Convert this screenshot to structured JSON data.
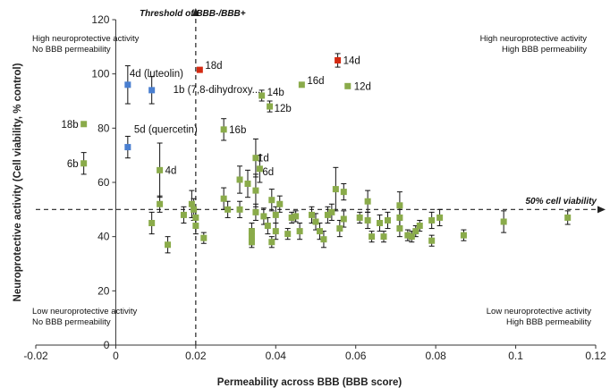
{
  "chart_data": {
    "type": "scatter",
    "title": "",
    "xlabel": "Permeability across BBB (BBB score)",
    "ylabel": "Neuroprotective activity (Cell viability, % control)",
    "xlim": [
      -0.02,
      0.12
    ],
    "ylim": [
      0,
      120
    ],
    "xticks": [
      -0.02,
      0,
      0.02,
      0.04,
      0.06,
      0.08,
      0.1,
      0.12
    ],
    "xtick_labels": [
      "-0.02",
      "0",
      "0.02",
      "0.04",
      "0.06",
      "0.08",
      "0.1",
      "0.12"
    ],
    "yticks": [
      0,
      20,
      40,
      60,
      80,
      100,
      120
    ],
    "ytick_labels": [
      "0",
      "20",
      "40",
      "60",
      "80",
      "100",
      "120"
    ],
    "grid": false,
    "colors": {
      "green": "#8aab4a",
      "blue": "#4a7fd0",
      "red": "#d42a12",
      "axis": "#333333"
    },
    "reference_lines": {
      "vertical": {
        "x": 0.02,
        "label": "Threshold of BBB-/BBB+"
      },
      "horizontal": {
        "y": 50,
        "label": "50% cell viability"
      }
    },
    "quadrant_labels": {
      "top_left": [
        "High neuroprotective activity",
        "No BBB permeability"
      ],
      "top_right": [
        "High neuroprotective activity",
        "High BBB permeability"
      ],
      "bottom_left": [
        "Low neuroprotective activity",
        "No BBB permeability"
      ],
      "bottom_right": [
        "Low neuroprotective activity",
        "High BBB permeability"
      ]
    },
    "points": [
      {
        "x": 0.021,
        "y": 101.5,
        "err": 0,
        "color": "red",
        "label": "18d"
      },
      {
        "x": 0.0555,
        "y": 105,
        "err": 2.5,
        "color": "red",
        "label": "14d"
      },
      {
        "x": 0.003,
        "y": 96,
        "err": 7,
        "color": "blue",
        "label": "4d (luteolin)"
      },
      {
        "x": 0.009,
        "y": 94,
        "err": 5,
        "color": "blue",
        "label": "1b (7,8-dihydroxy..."
      },
      {
        "x": 0.003,
        "y": 73,
        "err": 4,
        "color": "blue",
        "label": "5d (quercetin)"
      },
      {
        "x": -0.008,
        "y": 81.5,
        "err": 0,
        "color": "green",
        "label": "18b"
      },
      {
        "x": -0.008,
        "y": 67,
        "err": 4,
        "color": "green",
        "label": "6b"
      },
      {
        "x": 0.0465,
        "y": 96,
        "err": 0,
        "color": "green",
        "label": "16d"
      },
      {
        "x": 0.058,
        "y": 95.5,
        "err": 0,
        "color": "green",
        "label": "12d"
      },
      {
        "x": 0.0365,
        "y": 92,
        "err": 2,
        "color": "green",
        "label": "14b"
      },
      {
        "x": 0.0385,
        "y": 88,
        "err": 2,
        "color": "green",
        "label": "12b"
      },
      {
        "x": 0.027,
        "y": 79.5,
        "err": 4,
        "color": "green",
        "label": "16b"
      },
      {
        "x": 0.011,
        "y": 64.5,
        "err": 10,
        "color": "green",
        "label": "4d"
      },
      {
        "x": 0.035,
        "y": 69,
        "err": 7,
        "color": "green",
        "label": "1d"
      },
      {
        "x": 0.036,
        "y": 65,
        "err": 5,
        "color": "green",
        "label": "6d"
      },
      {
        "x": 0.009,
        "y": 45,
        "err": 4,
        "color": "green",
        "label": ""
      },
      {
        "x": 0.011,
        "y": 52,
        "err": 3,
        "color": "green",
        "label": ""
      },
      {
        "x": 0.013,
        "y": 37,
        "err": 3,
        "color": "green",
        "label": ""
      },
      {
        "x": 0.017,
        "y": 48,
        "err": 3,
        "color": "green",
        "label": ""
      },
      {
        "x": 0.019,
        "y": 52,
        "err": 5,
        "color": "green",
        "label": ""
      },
      {
        "x": 0.0195,
        "y": 50,
        "err": 4,
        "color": "green",
        "label": ""
      },
      {
        "x": 0.02,
        "y": 47,
        "err": 3,
        "color": "green",
        "label": ""
      },
      {
        "x": 0.02,
        "y": 44,
        "err": 3,
        "color": "green",
        "label": ""
      },
      {
        "x": 0.022,
        "y": 39.5,
        "err": 2,
        "color": "green",
        "label": ""
      },
      {
        "x": 0.027,
        "y": 54,
        "err": 4,
        "color": "green",
        "label": ""
      },
      {
        "x": 0.028,
        "y": 50,
        "err": 3,
        "color": "green",
        "label": ""
      },
      {
        "x": 0.031,
        "y": 61,
        "err": 5,
        "color": "green",
        "label": ""
      },
      {
        "x": 0.031,
        "y": 50,
        "err": 3,
        "color": "green",
        "label": ""
      },
      {
        "x": 0.033,
        "y": 59.5,
        "err": 5,
        "color": "green",
        "label": ""
      },
      {
        "x": 0.034,
        "y": 42,
        "err": 3,
        "color": "green",
        "label": ""
      },
      {
        "x": 0.034,
        "y": 40,
        "err": 3,
        "color": "green",
        "label": ""
      },
      {
        "x": 0.034,
        "y": 38,
        "err": 2,
        "color": "green",
        "label": ""
      },
      {
        "x": 0.035,
        "y": 57,
        "err": 6,
        "color": "green",
        "label": ""
      },
      {
        "x": 0.035,
        "y": 49,
        "err": 3,
        "color": "green",
        "label": ""
      },
      {
        "x": 0.037,
        "y": 47.5,
        "err": 3,
        "color": "green",
        "label": ""
      },
      {
        "x": 0.038,
        "y": 44,
        "err": 3,
        "color": "green",
        "label": ""
      },
      {
        "x": 0.039,
        "y": 53.5,
        "err": 4,
        "color": "green",
        "label": ""
      },
      {
        "x": 0.039,
        "y": 38,
        "err": 2,
        "color": "green",
        "label": ""
      },
      {
        "x": 0.04,
        "y": 48,
        "err": 3,
        "color": "green",
        "label": ""
      },
      {
        "x": 0.041,
        "y": 52,
        "err": 3,
        "color": "green",
        "label": ""
      },
      {
        "x": 0.04,
        "y": 42,
        "err": 3,
        "color": "green",
        "label": ""
      },
      {
        "x": 0.043,
        "y": 41,
        "err": 2,
        "color": "green",
        "label": ""
      },
      {
        "x": 0.044,
        "y": 47,
        "err": 2,
        "color": "green",
        "label": ""
      },
      {
        "x": 0.045,
        "y": 47.5,
        "err": 2,
        "color": "green",
        "label": ""
      },
      {
        "x": 0.046,
        "y": 42,
        "err": 3,
        "color": "green",
        "label": ""
      },
      {
        "x": 0.049,
        "y": 48,
        "err": 3,
        "color": "green",
        "label": ""
      },
      {
        "x": 0.05,
        "y": 45.5,
        "err": 3,
        "color": "green",
        "label": ""
      },
      {
        "x": 0.051,
        "y": 42,
        "err": 3,
        "color": "green",
        "label": ""
      },
      {
        "x": 0.052,
        "y": 39,
        "err": 3,
        "color": "green",
        "label": ""
      },
      {
        "x": 0.053,
        "y": 48,
        "err": 3,
        "color": "green",
        "label": ""
      },
      {
        "x": 0.054,
        "y": 49,
        "err": 3,
        "color": "green",
        "label": ""
      },
      {
        "x": 0.055,
        "y": 57.5,
        "err": 8,
        "color": "green",
        "label": ""
      },
      {
        "x": 0.056,
        "y": 43,
        "err": 3,
        "color": "green",
        "label": ""
      },
      {
        "x": 0.057,
        "y": 56.5,
        "err": 3,
        "color": "green",
        "label": ""
      },
      {
        "x": 0.057,
        "y": 46.5,
        "err": 3,
        "color": "green",
        "label": ""
      },
      {
        "x": 0.061,
        "y": 47,
        "err": 2,
        "color": "green",
        "label": ""
      },
      {
        "x": 0.063,
        "y": 53,
        "err": 4,
        "color": "green",
        "label": ""
      },
      {
        "x": 0.063,
        "y": 46,
        "err": 3,
        "color": "green",
        "label": ""
      },
      {
        "x": 0.064,
        "y": 40,
        "err": 2,
        "color": "green",
        "label": ""
      },
      {
        "x": 0.066,
        "y": 45,
        "err": 3,
        "color": "green",
        "label": ""
      },
      {
        "x": 0.067,
        "y": 40,
        "err": 2,
        "color": "green",
        "label": ""
      },
      {
        "x": 0.068,
        "y": 46,
        "err": 3,
        "color": "green",
        "label": ""
      },
      {
        "x": 0.071,
        "y": 51.5,
        "err": 5,
        "color": "green",
        "label": ""
      },
      {
        "x": 0.071,
        "y": 47,
        "err": 3,
        "color": "green",
        "label": ""
      },
      {
        "x": 0.071,
        "y": 43,
        "err": 3,
        "color": "green",
        "label": ""
      },
      {
        "x": 0.073,
        "y": 40.5,
        "err": 2,
        "color": "green",
        "label": ""
      },
      {
        "x": 0.074,
        "y": 40,
        "err": 2,
        "color": "green",
        "label": ""
      },
      {
        "x": 0.075,
        "y": 42,
        "err": 2,
        "color": "green",
        "label": ""
      },
      {
        "x": 0.076,
        "y": 44,
        "err": 2,
        "color": "green",
        "label": ""
      },
      {
        "x": 0.079,
        "y": 46,
        "err": 3,
        "color": "green",
        "label": ""
      },
      {
        "x": 0.079,
        "y": 38.5,
        "err": 2,
        "color": "green",
        "label": ""
      },
      {
        "x": 0.081,
        "y": 47,
        "err": 3,
        "color": "green",
        "label": ""
      },
      {
        "x": 0.087,
        "y": 40.5,
        "err": 2,
        "color": "green",
        "label": ""
      },
      {
        "x": 0.097,
        "y": 45.5,
        "err": 4,
        "color": "green",
        "label": ""
      },
      {
        "x": 0.113,
        "y": 47,
        "err": 2.5,
        "color": "green",
        "label": ""
      }
    ]
  }
}
